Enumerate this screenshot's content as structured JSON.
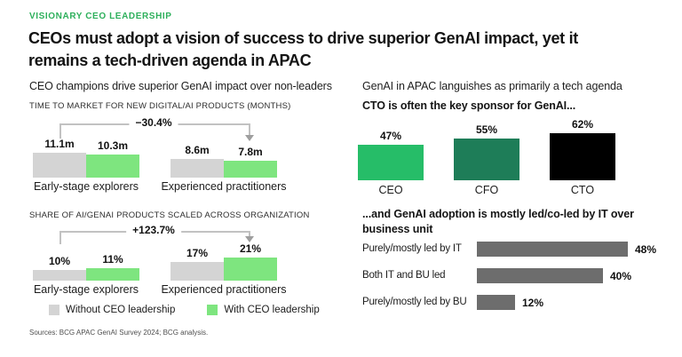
{
  "header": {
    "eyebrow": "VISIONARY CEO LEADERSHIP",
    "title_lines": [
      "CEOs must adopt a vision of success to drive superior GenAI impact, yet it",
      "remains a tech-driven agenda in APAC"
    ]
  },
  "page": {
    "source": "Sources: BCG APAC GenAI Survey 2024; BCG analysis."
  },
  "colors": {
    "accent_green": "#2eb05c",
    "light_green": "#7ee57f",
    "medium_green": "#26bd68",
    "dark_green": "#1e7d58",
    "black": "#000000",
    "bar_gray": "#d4d4d4",
    "dark_gray": "#6d6d6d"
  },
  "left_column": {
    "subtitle": "CEO champions drive superior GenAI impact over non-leaders",
    "legend": [
      {
        "label": "Without CEO leadership",
        "color": "#d4d4d4"
      },
      {
        "label": "With CEO leadership",
        "color": "#7ee57f"
      }
    ]
  },
  "right_column": {
    "subtitle": "GenAI in APAC languishes as primarily a tech agenda",
    "sponsor_title": "CTO is often the key sponsor for GenAI...",
    "adoption_title_lines": [
      "...and GenAI adoption is mostly led/co-led by IT over",
      "business unit"
    ]
  },
  "chart_data": [
    {
      "id": "time-to-market",
      "type": "bar",
      "title": "TIME TO MARKET FOR NEW DIGITAL/AI PRODUCTS (MONTHS)",
      "annotation": "−30.4%",
      "unit": "months",
      "categories": [
        "Early-stage explorers",
        "Experienced practitioners"
      ],
      "series": [
        {
          "name": "Without CEO leadership",
          "color": "#d4d4d4",
          "values": [
            11.1,
            8.6
          ],
          "labels": [
            "11.1m",
            "8.6m"
          ]
        },
        {
          "name": "With CEO leadership",
          "color": "#7ee57f",
          "values": [
            10.3,
            7.8
          ],
          "labels": [
            "10.3m",
            "7.8m"
          ]
        }
      ]
    },
    {
      "id": "share-scaled",
      "type": "bar",
      "title": "SHARE OF AI/GENAI PRODUCTS SCALED ACROSS ORGANIZATION",
      "annotation": "+123.7%",
      "unit": "%",
      "categories": [
        "Early-stage explorers",
        "Experienced practitioners"
      ],
      "series": [
        {
          "name": "Without CEO leadership",
          "color": "#d4d4d4",
          "values": [
            10,
            17
          ],
          "labels": [
            "10%",
            "17%"
          ]
        },
        {
          "name": "With CEO leadership",
          "color": "#7ee57f",
          "values": [
            11,
            21
          ],
          "labels": [
            "11%",
            "21%"
          ]
        }
      ]
    },
    {
      "id": "sponsor",
      "type": "bar",
      "title": "CTO is often the key sponsor for GenAI...",
      "unit": "%",
      "categories": [
        "CEO",
        "CFO",
        "CTO"
      ],
      "values": [
        47,
        55,
        62
      ],
      "labels": [
        "47%",
        "55%",
        "62%"
      ],
      "colors": [
        "#26bd68",
        "#1e7d58",
        "#000000"
      ]
    },
    {
      "id": "adoption-leadership",
      "type": "bar",
      "orientation": "horizontal",
      "title": "...and GenAI adoption is mostly led/co-led by IT over business unit",
      "unit": "%",
      "categories": [
        "Purely/mostly led by IT",
        "Both IT and BU led",
        "Purely/mostly led by BU"
      ],
      "values": [
        48,
        40,
        12
      ],
      "labels": [
        "48%",
        "40%",
        "12%"
      ],
      "color": "#6d6d6d"
    }
  ]
}
